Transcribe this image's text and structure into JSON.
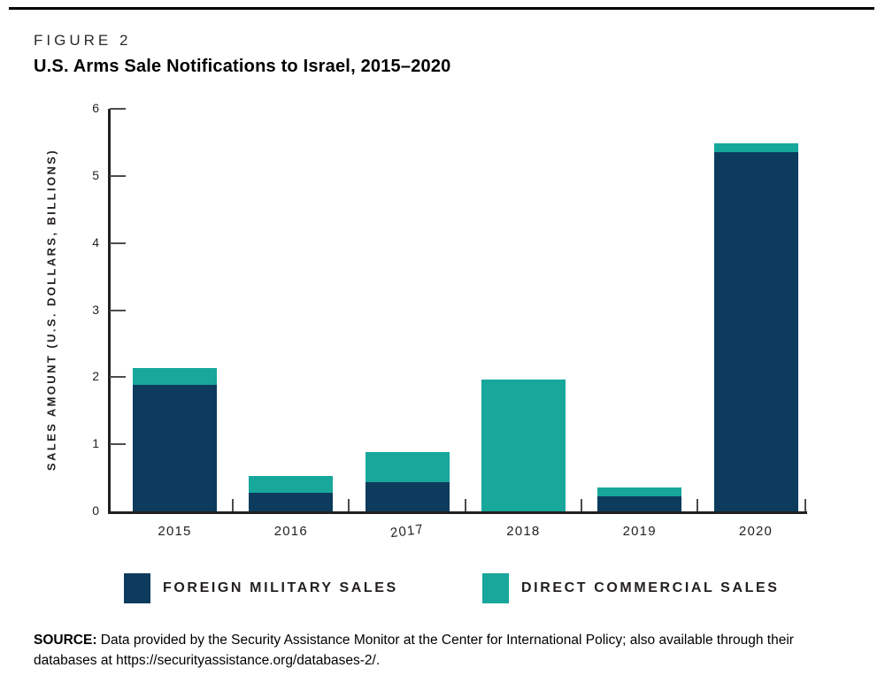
{
  "figure": {
    "label": "FIGURE 2",
    "title": "U.S. Arms Sale Notifications to Israel, 2015–2020"
  },
  "chart_data": {
    "type": "bar",
    "stacked": true,
    "title": "U.S. Arms Sale Notifications to Israel, 2015–2020",
    "categories": [
      "2015",
      "2016",
      "2017",
      "2018",
      "2019",
      "2020"
    ],
    "series": [
      {
        "name": "FOREIGN MILITARY SALES",
        "color": "#0c3b5d",
        "values": [
          1.88,
          0.28,
          0.43,
          0,
          0.22,
          5.36
        ]
      },
      {
        "name": "DIRECT COMMERCIAL SALES",
        "color": "#17a79b",
        "values": [
          0.25,
          0.25,
          0.45,
          1.97,
          0.14,
          0.12
        ]
      }
    ],
    "xlabel": "",
    "ylabel": "SALES AMOUNT (U.S. DOLLARS, BILLIONS)",
    "ylim": [
      0,
      6
    ],
    "yticks": [
      0,
      1,
      2,
      3,
      4,
      5,
      6
    ],
    "grid": false,
    "legend_position": "bottom",
    "x_label_tilt_index": 2,
    "axis_color": "#231f20",
    "tick_color": "#4c4c4c"
  },
  "source": {
    "bold": "SOURCE:",
    "text": " Data provided by the Security Assistance Monitor at the Center for International Policy; also available through their databases at https://securityassistance.org/databases-2/."
  }
}
